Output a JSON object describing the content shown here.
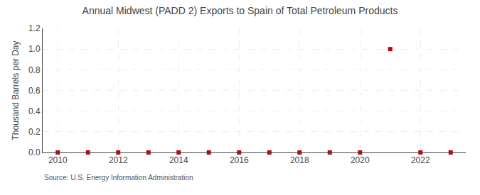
{
  "chart_data": {
    "type": "scatter",
    "title": "Annual Midwest (PADD 2) Exports to Spain of Total Petroleum Products",
    "ylabel": "Thousand Barrels per Day",
    "annotations": [
      "Source: U.S. Energy Information Administration"
    ],
    "x": [
      2010,
      2011,
      2012,
      2013,
      2014,
      2015,
      2016,
      2017,
      2018,
      2019,
      2020,
      2021,
      2022,
      2023
    ],
    "values": [
      0.0,
      0.0,
      0.0,
      0.0,
      0.0,
      0.0,
      0.0,
      0.0,
      0.0,
      0.0,
      0.0,
      1.0,
      0.0,
      0.0
    ],
    "color": "#cc0000",
    "marker": "square",
    "xlim": [
      2009.5,
      2023.5
    ],
    "xticks": [
      2010,
      2012,
      2014,
      2016,
      2018,
      2020,
      2022
    ],
    "ylim": [
      0.0,
      1.2
    ],
    "yticks": [
      {
        "value": 0.0,
        "label": "0.0"
      },
      {
        "value": 0.2,
        "label": "0.2"
      },
      {
        "value": 0.4,
        "label": "0.4"
      },
      {
        "value": 0.6,
        "label": "0.6"
      },
      {
        "value": 0.8,
        "label": "0.8"
      },
      {
        "value": 1.0,
        "label": "1.0"
      },
      {
        "value": 1.2,
        "label": "1.2"
      }
    ],
    "grid": true
  }
}
